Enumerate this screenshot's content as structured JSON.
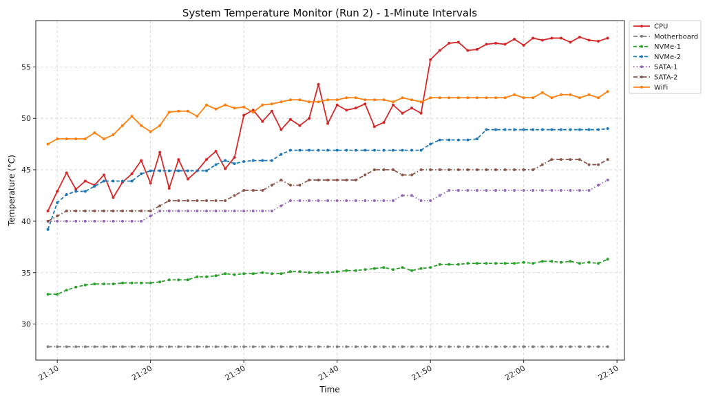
{
  "chart_data": {
    "type": "line",
    "title": "System Temperature Monitor (Run 2) - 1-Minute Intervals",
    "xlabel": "Time",
    "ylabel": "Temperature (°C)",
    "x_start_time": "21:09",
    "x_step_minutes": 1,
    "x_ticks": [
      "21:10",
      "21:20",
      "21:30",
      "21:40",
      "21:50",
      "22:00",
      "22:10"
    ],
    "y_ticks": [
      30,
      35,
      40,
      45,
      50,
      55
    ],
    "ylim": [
      26.5,
      59.5
    ],
    "xlim_minutes": [
      "21:07.7",
      "22:10.8"
    ],
    "grid": true,
    "legend_position": "outside-right",
    "series": [
      {
        "name": "CPU",
        "color": "#d62728",
        "linestyle": "solid",
        "marker": "circle",
        "values": [
          41.0,
          42.9,
          44.7,
          43.1,
          43.9,
          43.5,
          44.5,
          42.3,
          43.8,
          44.6,
          45.9,
          43.7,
          46.7,
          43.2,
          46.0,
          44.1,
          44.9,
          46.0,
          46.8,
          45.1,
          46.2,
          50.3,
          50.8,
          49.7,
          50.7,
          48.9,
          49.9,
          49.3,
          50.0,
          53.3,
          49.5,
          51.3,
          50.8,
          51.0,
          51.4,
          49.2,
          49.6,
          51.3,
          50.5,
          51.0,
          50.5,
          55.7,
          56.6,
          57.3,
          57.4,
          56.6,
          56.7,
          57.2,
          57.3,
          57.2,
          57.7,
          57.1,
          57.8,
          57.6,
          57.8,
          57.8,
          57.4,
          57.9,
          57.6,
          57.5,
          57.8
        ]
      },
      {
        "name": "Motherboard",
        "color": "#7f7f7f",
        "linestyle": "dashdot",
        "marker": "circle",
        "values": [
          27.8,
          27.8,
          27.8,
          27.8,
          27.8,
          27.8,
          27.8,
          27.8,
          27.8,
          27.8,
          27.8,
          27.8,
          27.8,
          27.8,
          27.8,
          27.8,
          27.8,
          27.8,
          27.8,
          27.8,
          27.8,
          27.8,
          27.8,
          27.8,
          27.8,
          27.8,
          27.8,
          27.8,
          27.8,
          27.8,
          27.8,
          27.8,
          27.8,
          27.8,
          27.8,
          27.8,
          27.8,
          27.8,
          27.8,
          27.8,
          27.8,
          27.8,
          27.8,
          27.8,
          27.8,
          27.8,
          27.8,
          27.8,
          27.8,
          27.8,
          27.8,
          27.8,
          27.8,
          27.8,
          27.8,
          27.8,
          27.8,
          27.8,
          27.8,
          27.8,
          27.8
        ]
      },
      {
        "name": "NVMe-1",
        "color": "#2ca02c",
        "linestyle": "dashed",
        "marker": "circle",
        "values": [
          32.9,
          32.9,
          33.3,
          33.6,
          33.8,
          33.9,
          33.9,
          33.9,
          34.0,
          34.0,
          34.0,
          34.0,
          34.1,
          34.3,
          34.3,
          34.3,
          34.6,
          34.6,
          34.7,
          34.9,
          34.8,
          34.9,
          34.9,
          35.0,
          34.9,
          34.9,
          35.1,
          35.1,
          35.0,
          35.0,
          35.0,
          35.1,
          35.2,
          35.2,
          35.3,
          35.4,
          35.5,
          35.3,
          35.5,
          35.2,
          35.4,
          35.5,
          35.8,
          35.8,
          35.8,
          35.9,
          35.9,
          35.9,
          35.9,
          35.9,
          35.9,
          36.0,
          35.9,
          36.1,
          36.1,
          36.0,
          36.1,
          35.9,
          36.0,
          35.9,
          36.3
        ]
      },
      {
        "name": "NVMe-2",
        "color": "#1f77b4",
        "linestyle": "dashed",
        "marker": "circle",
        "values": [
          39.2,
          41.8,
          42.6,
          42.9,
          42.9,
          43.4,
          43.9,
          43.9,
          43.9,
          43.9,
          44.6,
          44.9,
          44.9,
          44.9,
          44.9,
          44.9,
          44.9,
          44.9,
          45.5,
          45.9,
          45.6,
          45.8,
          45.9,
          45.9,
          45.9,
          46.5,
          46.9,
          46.9,
          46.9,
          46.9,
          46.9,
          46.9,
          46.9,
          46.9,
          46.9,
          46.9,
          46.9,
          46.9,
          46.9,
          46.9,
          46.9,
          47.5,
          47.9,
          47.9,
          47.9,
          47.9,
          48.0,
          48.9,
          48.9,
          48.9,
          48.9,
          48.9,
          48.9,
          48.9,
          48.9,
          48.9,
          48.9,
          48.9,
          48.9,
          48.9,
          49.0
        ]
      },
      {
        "name": "SATA-1",
        "color": "#9467bd",
        "linestyle": "dotted",
        "marker": "circle",
        "values": [
          40.0,
          40.0,
          40.0,
          40.0,
          40.0,
          40.0,
          40.0,
          40.0,
          40.0,
          40.0,
          40.0,
          40.5,
          41.0,
          41.0,
          41.0,
          41.0,
          41.0,
          41.0,
          41.0,
          41.0,
          41.0,
          41.0,
          41.0,
          41.0,
          41.0,
          41.5,
          42.0,
          42.0,
          42.0,
          42.0,
          42.0,
          42.0,
          42.0,
          42.0,
          42.0,
          42.0,
          42.0,
          42.0,
          42.5,
          42.5,
          42.0,
          42.0,
          42.5,
          43.0,
          43.0,
          43.0,
          43.0,
          43.0,
          43.0,
          43.0,
          43.0,
          43.0,
          43.0,
          43.0,
          43.0,
          43.0,
          43.0,
          43.0,
          43.0,
          43.5,
          44.0
        ]
      },
      {
        "name": "SATA-2",
        "color": "#8c564b",
        "linestyle": "dashdot",
        "marker": "circle",
        "values": [
          40.0,
          40.5,
          41.0,
          41.0,
          41.0,
          41.0,
          41.0,
          41.0,
          41.0,
          41.0,
          41.0,
          41.0,
          41.5,
          42.0,
          42.0,
          42.0,
          42.0,
          42.0,
          42.0,
          42.0,
          42.5,
          43.0,
          43.0,
          43.0,
          43.5,
          44.0,
          43.5,
          43.5,
          44.0,
          44.0,
          44.0,
          44.0,
          44.0,
          44.0,
          44.5,
          45.0,
          45.0,
          45.0,
          44.5,
          44.5,
          45.0,
          45.0,
          45.0,
          45.0,
          45.0,
          45.0,
          45.0,
          45.0,
          45.0,
          45.0,
          45.0,
          45.0,
          45.0,
          45.5,
          46.0,
          46.0,
          46.0,
          46.0,
          45.5,
          45.5,
          46.0
        ]
      },
      {
        "name": "WiFi",
        "color": "#ff7f0e",
        "linestyle": "solid",
        "marker": "circle",
        "values": [
          47.5,
          48.0,
          48.0,
          48.0,
          48.0,
          48.6,
          48.0,
          48.4,
          49.3,
          50.2,
          49.3,
          48.7,
          49.3,
          50.6,
          50.7,
          50.7,
          50.2,
          51.3,
          50.9,
          51.3,
          51.0,
          51.1,
          50.6,
          51.3,
          51.4,
          51.6,
          51.8,
          51.8,
          51.6,
          51.6,
          51.8,
          51.8,
          52.0,
          52.0,
          51.8,
          51.8,
          51.8,
          51.6,
          52.0,
          51.8,
          51.6,
          52.0,
          52.0,
          52.0,
          52.0,
          52.0,
          52.0,
          52.0,
          52.0,
          52.0,
          52.3,
          52.0,
          52.0,
          52.5,
          52.0,
          52.3,
          52.3,
          52.0,
          52.3,
          52.0,
          52.6
        ]
      }
    ]
  }
}
